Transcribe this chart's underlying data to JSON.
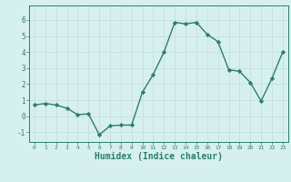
{
  "x": [
    0,
    1,
    2,
    3,
    4,
    5,
    6,
    7,
    8,
    9,
    10,
    11,
    12,
    13,
    14,
    15,
    16,
    17,
    18,
    19,
    20,
    21,
    22,
    23
  ],
  "y": [
    0.7,
    0.8,
    0.7,
    0.5,
    0.1,
    0.15,
    -1.15,
    -0.6,
    -0.55,
    -0.55,
    1.5,
    2.6,
    4.0,
    5.85,
    5.75,
    5.85,
    5.1,
    4.65,
    2.9,
    2.8,
    2.1,
    0.95,
    2.35,
    4.0
  ],
  "line_color": "#2e7d6e",
  "marker": "D",
  "markersize": 2.2,
  "linewidth": 1.0,
  "bg_color": "#d6f0ef",
  "grid_color": "#c8dfe0",
  "xlabel": "Humidex (Indice chaleur)",
  "xlabel_fontsize": 7,
  "xtick_labels": [
    "0",
    "1",
    "2",
    "3",
    "4",
    "5",
    "6",
    "7",
    "8",
    "9",
    "10",
    "11",
    "12",
    "13",
    "14",
    "15",
    "16",
    "17",
    "18",
    "19",
    "20",
    "21",
    "22",
    "23"
  ],
  "ytick_labels": [
    "-1",
    "0",
    "1",
    "2",
    "3",
    "4",
    "5",
    "6"
  ],
  "yticks": [
    -1,
    0,
    1,
    2,
    3,
    4,
    5,
    6
  ],
  "ylim": [
    -1.6,
    6.9
  ],
  "xlim": [
    -0.5,
    23.5
  ],
  "tick_color": "#2e7d6e",
  "label_color": "#2e7d6e"
}
